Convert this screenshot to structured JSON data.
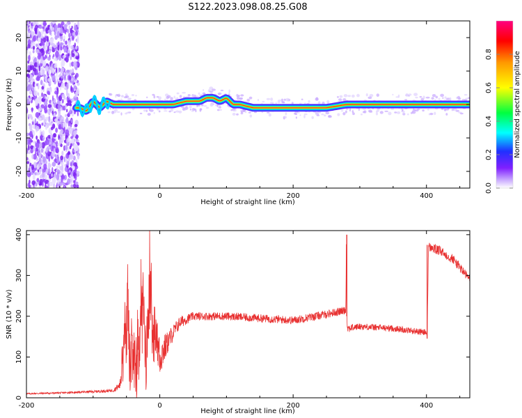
{
  "title": "S122.2023.098.08.25.G08",
  "chart_data": [
    {
      "type": "heatmap",
      "title": "S122.2023.098.08.25.G08",
      "xlabel": "Height of straight line (km)",
      "ylabel": "Frequency (Hz)",
      "xlim": [
        -200,
        465
      ],
      "ylim": [
        -25,
        25
      ],
      "xticks": [
        -200,
        0,
        200,
        400
      ],
      "yticks": [
        -20,
        -10,
        0,
        10,
        20
      ],
      "colorbar": {
        "label": "Normalized spectral amplitude",
        "range": [
          0,
          1
        ],
        "ticks": [
          "0.0",
          "0.2",
          "0.4",
          "0.6",
          "0.8"
        ],
        "colors": [
          "#ffffff",
          "#c8a8ff",
          "#8020ff",
          "#2030ff",
          "#00ffff",
          "#00ff40",
          "#ffff00",
          "#ff9900",
          "#ff0000",
          "#ff0080"
        ]
      },
      "ridge": {
        "x": [
          -120,
          -110,
          -100,
          -90,
          -80,
          -70,
          -40,
          0,
          20,
          40,
          60,
          70,
          80,
          90,
          100,
          110,
          120,
          140,
          160,
          200,
          250,
          280,
          300,
          350,
          400,
          465
        ],
        "y": [
          -1,
          -2,
          1,
          -1,
          1,
          0,
          0,
          0,
          0,
          1,
          1,
          2,
          2,
          1,
          2,
          0,
          0,
          -1,
          -1,
          -1,
          -1,
          0,
          0,
          0,
          0,
          0
        ]
      }
    },
    {
      "type": "line",
      "xlabel": "Height of straight line (km)",
      "ylabel": "SNR (10 * v/v)",
      "xlim": [
        -200,
        465
      ],
      "ylim": [
        0,
        410
      ],
      "xticks": [
        -200,
        0,
        200,
        400
      ],
      "yticks": [
        0,
        100,
        200,
        300,
        400
      ],
      "color": "#e83030",
      "x": [
        -200,
        -150,
        -100,
        -70,
        -60,
        -55,
        -52,
        -50,
        -48,
        -45,
        -40,
        -35,
        -30,
        -25,
        -20,
        -15,
        -10,
        -5,
        0,
        10,
        20,
        30,
        50,
        100,
        150,
        200,
        250,
        279,
        280,
        281,
        300,
        350,
        400,
        401,
        403,
        420,
        440,
        465
      ],
      "y": [
        10,
        12,
        15,
        18,
        30,
        80,
        200,
        140,
        250,
        60,
        100,
        80,
        150,
        220,
        80,
        270,
        120,
        150,
        100,
        130,
        160,
        185,
        200,
        200,
        195,
        190,
        205,
        215,
        400,
        170,
        175,
        170,
        160,
        145,
        370,
        360,
        340,
        290
      ],
      "noise_amplitude": [
        2,
        2,
        3,
        4,
        10,
        60,
        80,
        80,
        80,
        70,
        80,
        90,
        90,
        100,
        90,
        90,
        60,
        50,
        50,
        30,
        20,
        15,
        10,
        10,
        10,
        10,
        10,
        10,
        10,
        10,
        8,
        8,
        8,
        8,
        12,
        12,
        12,
        12
      ]
    }
  ]
}
